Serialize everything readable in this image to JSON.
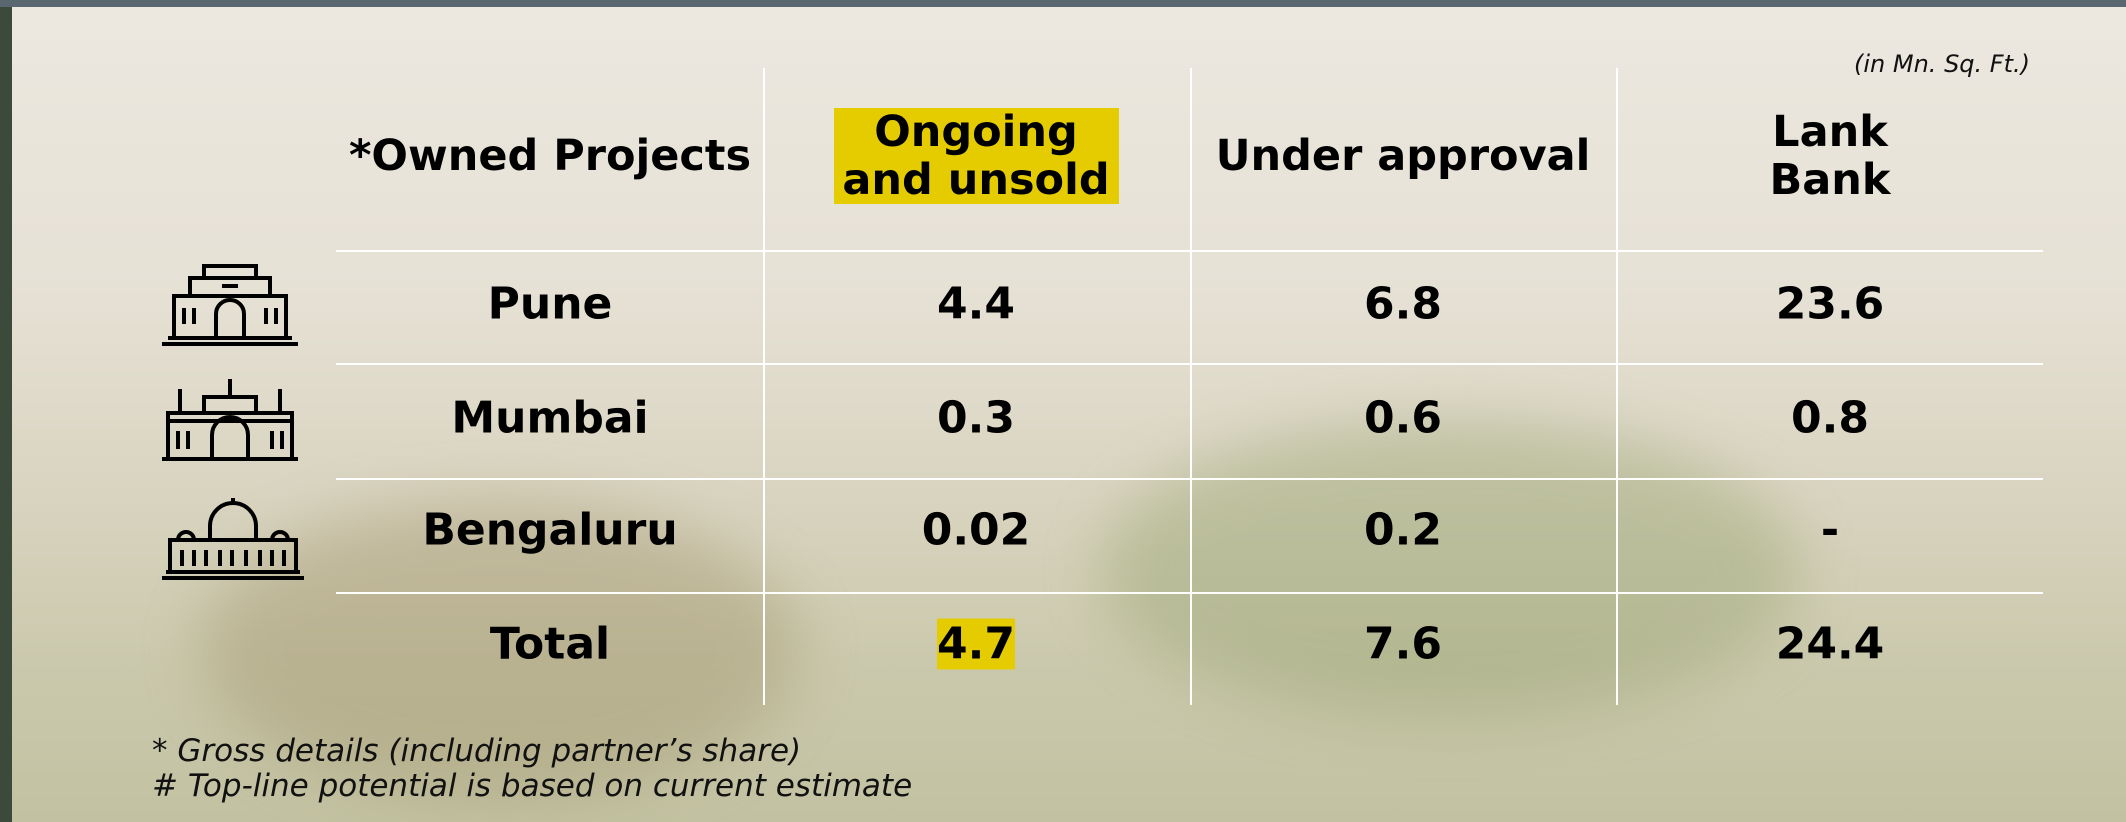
{
  "unit_note": "(in Mn. Sq. Ft.)",
  "table": {
    "header": [
      "*Owned Projects",
      "Ongoing and unsold",
      "Under approval",
      "Lank Bank"
    ],
    "rows": [
      [
        "Pune",
        "4.4",
        "6.8",
        "23.6"
      ],
      [
        "Mumbai",
        "0.3",
        "0.6",
        "0.8"
      ],
      [
        "Bengaluru",
        "0.02",
        "0.2",
        "-"
      ],
      [
        "Total",
        "4.7",
        "7.6",
        "24.4"
      ]
    ]
  },
  "footnotes": [
    "* Gross details (including partner’s share)",
    "# Top-line potential is based on current estimate"
  ]
}
